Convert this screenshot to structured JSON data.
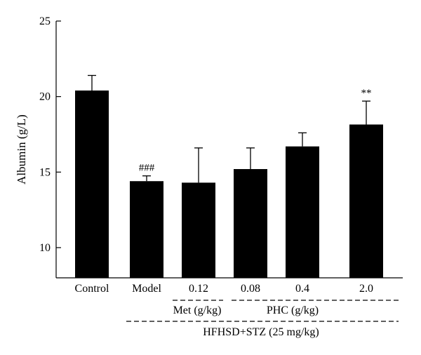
{
  "chart_data": {
    "type": "bar",
    "title": "",
    "xlabel": "",
    "ylabel": "Albumin (g/L)",
    "ylim": [
      8,
      25
    ],
    "yticks": [
      10,
      15,
      20,
      25
    ],
    "categories": [
      "Control",
      "Model",
      "0.12",
      "0.08",
      "0.4",
      "2.0"
    ],
    "values": [
      20.4,
      14.4,
      14.3,
      15.2,
      16.7,
      18.15
    ],
    "errors": [
      1.0,
      0.35,
      2.3,
      1.4,
      0.9,
      1.55
    ],
    "annotations": [
      "",
      "###",
      "",
      "",
      "",
      "**"
    ],
    "bar_color": "#000000",
    "group_labels": {
      "met": "Met (g/kg)",
      "phc": "PHC (g/kg)",
      "model": "HFHSD+STZ (25 mg/kg)"
    }
  }
}
